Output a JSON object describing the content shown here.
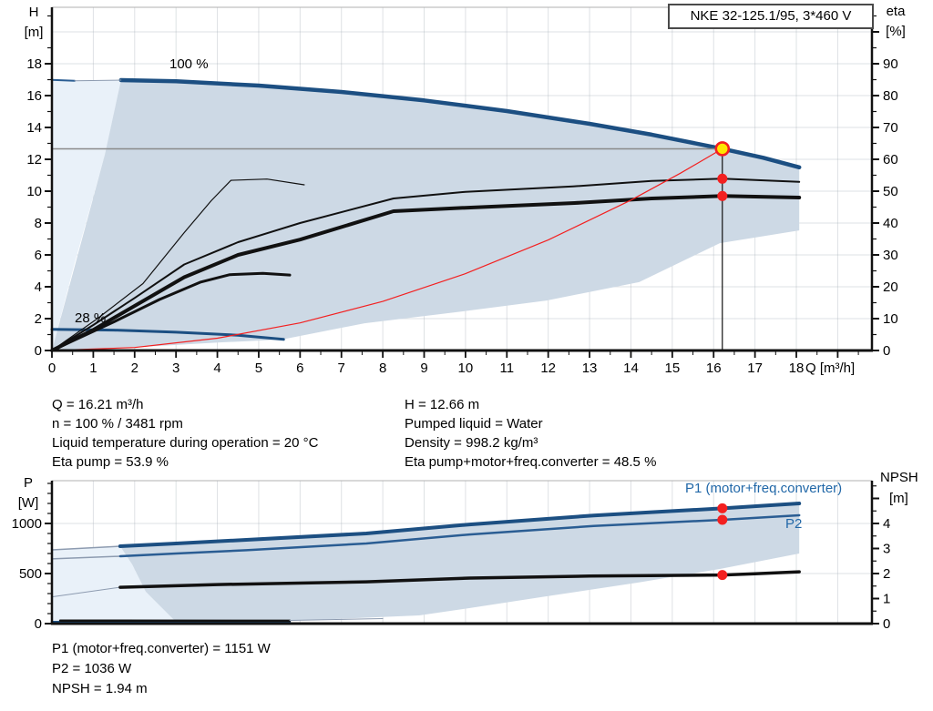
{
  "title_box": {
    "label": "NKE 32-125.1/95, 3*460 V"
  },
  "annotations": {
    "speed_100": "100 %",
    "speed_28": "28 %",
    "p1_curve_label": "P1 (motor+freq.converter)",
    "p2_curve_label": "P2"
  },
  "axes_titles": {
    "h_line1": "H",
    "h_line2": "[m]",
    "eta_line1": "eta",
    "eta_line2": "[%]",
    "p_line1": "P",
    "p_line2": "[W]",
    "npsh_line1": "NPSH",
    "npsh_line2": "[m]",
    "q_unit": "Q [m³/h]"
  },
  "info_top": {
    "left": [
      "Q = 16.21 m³/h",
      "n = 100 % / 3481 rpm",
      "Liquid temperature during operation = 20 °C",
      "Eta pump = 53.9 %"
    ],
    "right": [
      "H = 12.66 m",
      "Pumped liquid = Water",
      "Density = 998.2 kg/m³",
      "Eta pump+motor+freq.converter = 48.5 %"
    ]
  },
  "info_bottom": [
    "P1 (motor+freq.converter) = 1151 W",
    "P2 = 1036 W",
    "NPSH = 1.94 m"
  ],
  "colors": {
    "curve_blue": "#1c4f82",
    "curve_blue_light": "#2a5d93",
    "thin_gray": "#8d9bb0",
    "red": "#f32020",
    "yellow": "#ffe600",
    "shade_light": "#e9f1f9",
    "shade_dark": "#cdd9e5",
    "grid": "#9aa4ae",
    "duty_gray": "#8a8a8a",
    "axis_black": "#111111",
    "label_blue": "#2268a8"
  },
  "chart_data": [
    {
      "type": "line",
      "title": "Pump curves QH / efficiency",
      "x_axis": {
        "label": "Q [m³/h]",
        "ticks": [
          0,
          1,
          2,
          3,
          4,
          5,
          6,
          7,
          8,
          9,
          10,
          11,
          12,
          13,
          14,
          15,
          16,
          17,
          18
        ]
      },
      "left_axis": {
        "label": "H [m]",
        "ticks": [
          0,
          2,
          4,
          6,
          8,
          10,
          12,
          14,
          16,
          18
        ],
        "range": [
          0,
          21.5
        ]
      },
      "right_axis": {
        "label": "eta [%]",
        "ticks": [
          0,
          10,
          20,
          30,
          40,
          50,
          60,
          70,
          80,
          90
        ],
        "range": [
          0,
          107
        ]
      },
      "duty_point": {
        "Q": 16.21,
        "H": 12.66,
        "eta_pump": 53.9,
        "eta_total": 48.5
      },
      "regions": [
        {
          "name": "envelope-below-min-flow",
          "color_key": "shade_light",
          "axis": "H",
          "points": [
            [
              0,
              16.97
            ],
            [
              1.67,
              16.97
            ],
            [
              1.28,
              12.3
            ],
            [
              0.55,
              5.5
            ],
            [
              0,
              0
            ]
          ]
        },
        {
          "name": "operating-envelope",
          "color_key": "shade_dark",
          "axis": "H",
          "points": [
            [
              1.67,
              16.97
            ],
            [
              3,
              16.9
            ],
            [
              5,
              16.63
            ],
            [
              7,
              16.23
            ],
            [
              9,
              15.7
            ],
            [
              11,
              15.03
            ],
            [
              13,
              14.23
            ],
            [
              14.5,
              13.55
            ],
            [
              16.21,
              12.66
            ],
            [
              17.2,
              12.1
            ],
            [
              18.07,
              11.5
            ],
            [
              18.07,
              7.54
            ],
            [
              16.15,
              6.74
            ],
            [
              14.2,
              4.29
            ],
            [
              11.96,
              3.14
            ],
            [
              9.76,
              2.4
            ],
            [
              7.56,
              1.71
            ],
            [
              5.57,
              0.69
            ],
            [
              4,
              0.5
            ],
            [
              2,
              0.2
            ],
            [
              0,
              0
            ],
            [
              1.28,
              12.3
            ]
          ]
        }
      ],
      "series": [
        {
          "name": "head-100pct",
          "axis": "H",
          "color_key": "curve_blue",
          "width": 4.5,
          "points": [
            [
              1.67,
              16.97
            ],
            [
              3,
              16.9
            ],
            [
              5,
              16.63
            ],
            [
              7,
              16.23
            ],
            [
              9,
              15.7
            ],
            [
              11,
              15.03
            ],
            [
              13,
              14.23
            ],
            [
              14.5,
              13.55
            ],
            [
              16.21,
              12.66
            ],
            [
              17.2,
              12.1
            ],
            [
              18.07,
              11.5
            ]
          ]
        },
        {
          "name": "head-100pct-low-flow",
          "axis": "H",
          "color_key": "curve_blue_light",
          "width": 2,
          "points": [
            [
              0,
              16.98
            ],
            [
              0.55,
              16.93
            ]
          ]
        },
        {
          "name": "head-100pct-low-flow-faint",
          "axis": "H",
          "color_key": "thin_gray",
          "width": 1,
          "points": [
            [
              0.55,
              16.93
            ],
            [
              1.67,
              16.97
            ]
          ]
        },
        {
          "name": "head-28pct",
          "axis": "H",
          "color_key": "curve_blue",
          "width": 3,
          "points": [
            [
              0,
              1.33
            ],
            [
              1.5,
              1.28
            ],
            [
              3,
              1.15
            ],
            [
              4.5,
              0.96
            ],
            [
              5.6,
              0.7
            ]
          ]
        },
        {
          "name": "eta-pump",
          "axis": "eta",
          "color_key": "axis_black",
          "width": 2,
          "points": [
            [
              0,
              0
            ],
            [
              1,
              8
            ],
            [
              2,
              16.5
            ],
            [
              3.2,
              27
            ],
            [
              4.5,
              34
            ],
            [
              6,
              40
            ],
            [
              8.26,
              47.7
            ],
            [
              10,
              49.8
            ],
            [
              12.6,
              51.5
            ],
            [
              14.5,
              53.2
            ],
            [
              16.21,
              53.9
            ],
            [
              18.07,
              52.9
            ]
          ]
        },
        {
          "name": "eta-pump-motor-freq",
          "axis": "eta",
          "color_key": "axis_black",
          "width": 4,
          "points": [
            [
              0,
              0
            ],
            [
              1,
              6.5
            ],
            [
              2,
              14
            ],
            [
              3.2,
              23
            ],
            [
              4.5,
              30
            ],
            [
              6,
              34.8
            ],
            [
              8.26,
              43.7
            ],
            [
              10,
              44.8
            ],
            [
              12.64,
              46.3
            ],
            [
              14.5,
              47.7
            ],
            [
              16.21,
              48.5
            ],
            [
              18.07,
              48.0
            ]
          ]
        },
        {
          "name": "eta-pump-28pct",
          "axis": "eta",
          "color_key": "axis_black",
          "width": 1.2,
          "points": [
            [
              0,
              0
            ],
            [
              1.1,
              10
            ],
            [
              2.2,
              21
            ],
            [
              3.2,
              37
            ],
            [
              3.85,
              47
            ],
            [
              4.33,
              53.4
            ],
            [
              5.2,
              53.8
            ],
            [
              6.1,
              52
            ]
          ]
        },
        {
          "name": "eta-total-28pct",
          "axis": "eta",
          "color_key": "axis_black",
          "width": 3,
          "points": [
            [
              0,
              0
            ],
            [
              1.5,
              9
            ],
            [
              2.6,
              16
            ],
            [
              3.6,
              21.5
            ],
            [
              4.3,
              23.8
            ],
            [
              5.1,
              24.2
            ],
            [
              5.75,
              23.7
            ]
          ]
        },
        {
          "name": "affinity-parabola-to-duty",
          "axis": "H",
          "color_key": "red",
          "width": 1.2,
          "points": [
            [
              0,
              0
            ],
            [
              2,
              0.19
            ],
            [
              4,
              0.77
            ],
            [
              6,
              1.73
            ],
            [
              8,
              3.08
            ],
            [
              10,
              4.82
            ],
            [
              12,
              6.94
            ],
            [
              14,
              9.44
            ],
            [
              15.2,
              11.13
            ],
            [
              16.21,
              12.66
            ]
          ]
        }
      ],
      "duty_lines": {
        "h_line": {
          "H": 12.66,
          "q_to": 16.21
        },
        "v_line": {
          "Q": 16.21,
          "H_from": 12.66
        }
      },
      "markers": [
        {
          "Q": 16.21,
          "axis": "H",
          "v": 12.66,
          "style": "duty"
        },
        {
          "Q": 16.21,
          "axis": "eta",
          "v": 53.9,
          "style": "dot"
        },
        {
          "Q": 16.21,
          "axis": "eta",
          "v": 48.5,
          "style": "dot"
        }
      ]
    },
    {
      "type": "line",
      "title": "Power and NPSH curves",
      "x_axis": {
        "label": "Q [m³/h]",
        "ticks": []
      },
      "left_axis": {
        "label": "P [W]",
        "ticks": [
          0,
          500,
          1000
        ],
        "range": [
          0,
          1425
        ]
      },
      "right_axis": {
        "label": "NPSH [m]",
        "ticks": [
          0,
          1,
          2,
          3,
          4
        ],
        "range": [
          0,
          5.7
        ]
      },
      "duty_point": {
        "Q": 16.21,
        "P1": 1151,
        "P2": 1036,
        "NPSH": 1.94
      },
      "regions": [
        {
          "name": "envelope-below-min-flow",
          "color_key": "shade_light",
          "axis": "P",
          "points": [
            [
              0,
              736
            ],
            [
              1.65,
              773
            ],
            [
              1.94,
              591
            ],
            [
              2.27,
              318
            ],
            [
              3.04,
              0
            ],
            [
              0,
              0
            ]
          ]
        },
        {
          "name": "operating-envelope",
          "color_key": "shade_dark",
          "axis": "P",
          "points": [
            [
              1.65,
              773
            ],
            [
              3,
              800
            ],
            [
              4.7,
              836
            ],
            [
              7.6,
              900
            ],
            [
              10.1,
              990
            ],
            [
              13.1,
              1080
            ],
            [
              14.6,
              1115
            ],
            [
              16.21,
              1151
            ],
            [
              18.07,
              1200
            ],
            [
              18.07,
              700
            ],
            [
              16.15,
              545
            ],
            [
              14.16,
              409
            ],
            [
              11.96,
              273
            ],
            [
              10.09,
              155
            ],
            [
              8.88,
              82
            ],
            [
              5.79,
              27
            ],
            [
              3.04,
              0
            ],
            [
              2.27,
              318
            ],
            [
              1.94,
              591
            ]
          ]
        }
      ],
      "series": [
        {
          "name": "p1-low-flow",
          "axis": "P",
          "color_key": "thin_gray",
          "width": 1.5,
          "points": [
            [
              0,
              736
            ],
            [
              1.65,
              773
            ]
          ]
        },
        {
          "name": "p1-motor-freq-converter",
          "axis": "P",
          "color_key": "curve_blue",
          "width": 4,
          "points": [
            [
              1.65,
              773
            ],
            [
              3,
              800
            ],
            [
              4.7,
              836
            ],
            [
              7.6,
              900
            ],
            [
              10.1,
              990
            ],
            [
              13.1,
              1080
            ],
            [
              14.6,
              1115
            ],
            [
              16.21,
              1151
            ],
            [
              18.07,
              1200
            ]
          ]
        },
        {
          "name": "p2-low-flow",
          "axis": "P",
          "color_key": "thin_gray",
          "width": 1.5,
          "points": [
            [
              0,
              646
            ],
            [
              1.65,
              673
            ]
          ]
        },
        {
          "name": "p2",
          "axis": "P",
          "color_key": "curve_blue_light",
          "width": 2.5,
          "points": [
            [
              1.65,
              673
            ],
            [
              3,
              700
            ],
            [
              4.7,
              733
            ],
            [
              7.6,
              800
            ],
            [
              10.1,
              890
            ],
            [
              13.1,
              975
            ],
            [
              16.21,
              1036
            ],
            [
              18.07,
              1082
            ]
          ]
        },
        {
          "name": "npsh-low-flow",
          "axis": "NPSH",
          "color_key": "thin_gray",
          "width": 1,
          "points": [
            [
              0,
              1.07
            ],
            [
              1.65,
              1.45
            ]
          ]
        },
        {
          "name": "npsh",
          "axis": "NPSH",
          "color_key": "axis_black",
          "width": 3.5,
          "points": [
            [
              1.65,
              1.45
            ],
            [
              4,
              1.56
            ],
            [
              7.6,
              1.67
            ],
            [
              10.1,
              1.82
            ],
            [
              13,
              1.9
            ],
            [
              16.21,
              1.94
            ],
            [
              17,
              1.99
            ],
            [
              18.07,
              2.07
            ]
          ]
        },
        {
          "name": "p-28pct-navy",
          "axis": "P",
          "color_key": "curve_blue",
          "width": 2.5,
          "points": [
            [
              0,
              16
            ],
            [
              5.75,
              18
            ]
          ]
        },
        {
          "name": "p-28pct-black",
          "axis": "P",
          "color_key": "axis_black",
          "width": 2.5,
          "points": [
            [
              0.2,
              30
            ],
            [
              5.75,
              28
            ]
          ]
        },
        {
          "name": "p-28pct-faint",
          "axis": "P",
          "color_key": "thin_gray",
          "width": 1,
          "points": [
            [
              5.75,
              32
            ],
            [
              8,
              50
            ]
          ]
        }
      ],
      "duty_lines": null,
      "markers": [
        {
          "Q": 16.21,
          "axis": "P",
          "v": 1151,
          "style": "dot"
        },
        {
          "Q": 16.21,
          "axis": "P",
          "v": 1036,
          "style": "dot"
        },
        {
          "Q": 16.21,
          "axis": "NPSH",
          "v": 1.94,
          "style": "dot"
        }
      ]
    }
  ]
}
